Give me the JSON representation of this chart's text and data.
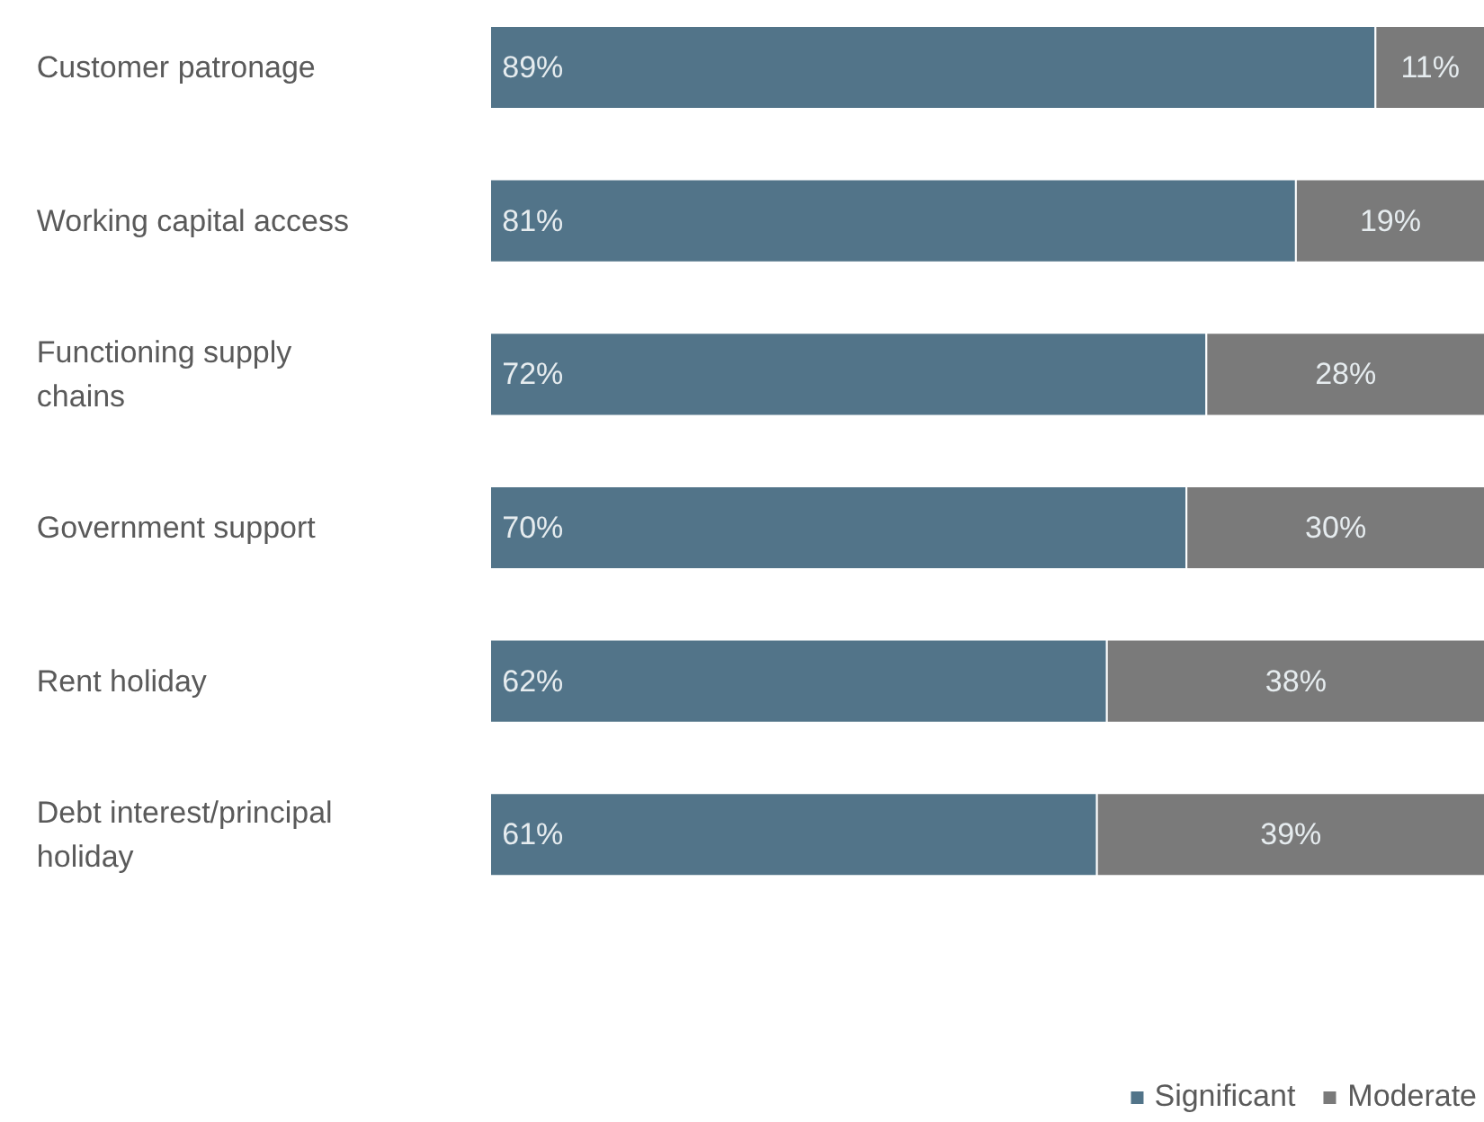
{
  "chart_data": {
    "type": "bar",
    "orientation": "horizontal",
    "stacked": true,
    "xlim": [
      0,
      100
    ],
    "tick_labels": false,
    "grid": false,
    "legend": "bottom right",
    "categories": [
      "Customer patronage",
      "Working capital access",
      "Functioning supply chains",
      "Government support",
      "Rent holiday",
      "Debt interest/principal holiday"
    ],
    "series": [
      {
        "name": "Significant",
        "color": "#527489",
        "values": [
          89,
          81,
          72,
          70,
          62,
          61
        ],
        "value_labels": [
          "89%",
          "81%",
          "72%",
          "70%",
          "62%",
          "61%"
        ]
      },
      {
        "name": "Moderate",
        "color": "#7a7a7a",
        "values": [
          11,
          19,
          28,
          30,
          38,
          39
        ],
        "value_labels": [
          "11%",
          "19%",
          "28%",
          "30%",
          "38%",
          "39%"
        ]
      }
    ]
  }
}
